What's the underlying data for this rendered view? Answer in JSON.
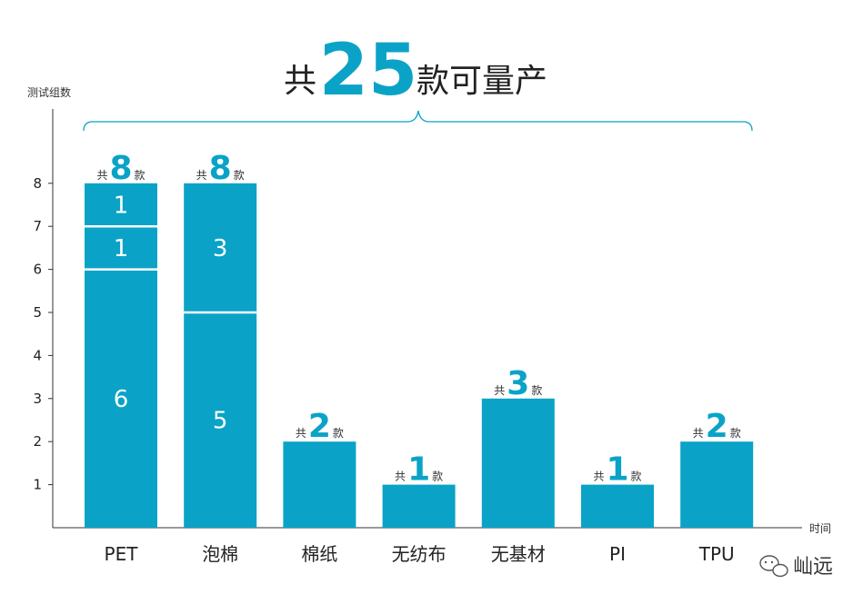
{
  "headline": {
    "prefix": "共",
    "number": "25",
    "suffix": "款可量产"
  },
  "watermark": {
    "text": "屾远",
    "icon": "chat-bubble-icon"
  },
  "colors": {
    "bar": "#0aa3c7",
    "accent": "#0aa3c7",
    "text": "#222222",
    "divider": "#ffffff"
  },
  "chart_data": {
    "type": "bar",
    "stacked": true,
    "ylabel": "测试组数",
    "xlabel": "时间",
    "ylim": [
      0,
      9
    ],
    "yticks": [
      1,
      2,
      3,
      4,
      5,
      6,
      7,
      8
    ],
    "grid": false,
    "categories": [
      "PET",
      "泡棉",
      "棉纸",
      "无纺布",
      "无基材",
      "PI",
      "TPU"
    ],
    "stacks": [
      [
        6,
        1,
        1
      ],
      [
        5,
        3
      ],
      [
        2
      ],
      [
        1
      ],
      [
        3
      ],
      [
        1
      ],
      [
        2
      ]
    ],
    "totals": [
      8,
      8,
      2,
      1,
      3,
      1,
      2
    ],
    "total_prefix": "共",
    "total_suffix": "款",
    "annotation": "共25款可量产"
  }
}
